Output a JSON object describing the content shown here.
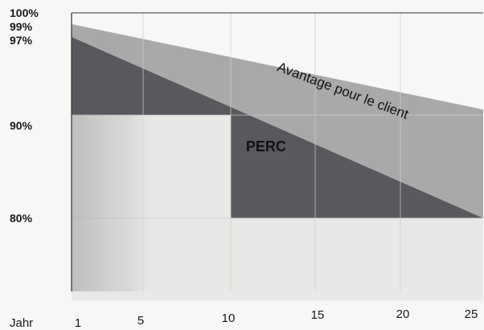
{
  "chart_data": {
    "type": "area",
    "xlabel": "Jahr",
    "x_ticks": [
      1,
      5,
      10,
      15,
      20,
      25
    ],
    "y_ticks": [
      {
        "value": 100,
        "label": "100%"
      },
      {
        "value": 99,
        "label": "99%"
      },
      {
        "value": 97,
        "label": "97%"
      },
      {
        "value": 90,
        "label": "90%"
      },
      {
        "value": 80,
        "label": "80%"
      }
    ],
    "xlim": [
      1,
      25
    ],
    "ylim": [
      72,
      100
    ],
    "grid": true,
    "series": [
      {
        "points": [
          [
            1,
            99
          ],
          [
            25,
            90.5
          ]
        ],
        "color": "#a9a9a9"
      },
      {
        "points": [
          [
            1,
            97
          ],
          [
            25,
            80
          ]
        ],
        "color": "#5b585d"
      },
      {
        "points": [
          [
            1,
            90
          ],
          [
            10,
            90
          ],
          [
            10,
            80
          ],
          [
            25,
            80
          ]
        ],
        "color": "#e8e8e6"
      }
    ],
    "annotations": [
      {
        "text": "PERC",
        "x": 10.9,
        "y": 86.5
      },
      {
        "text": "Avantage pour le client",
        "x": 12.7,
        "y": 94
      }
    ],
    "colors": {
      "upper_band": "#a9a9a9",
      "middle_band": "#5b585d",
      "lower_area": "#e8e8e6",
      "grid": "#cfcfcf",
      "axis": "#333333"
    }
  }
}
